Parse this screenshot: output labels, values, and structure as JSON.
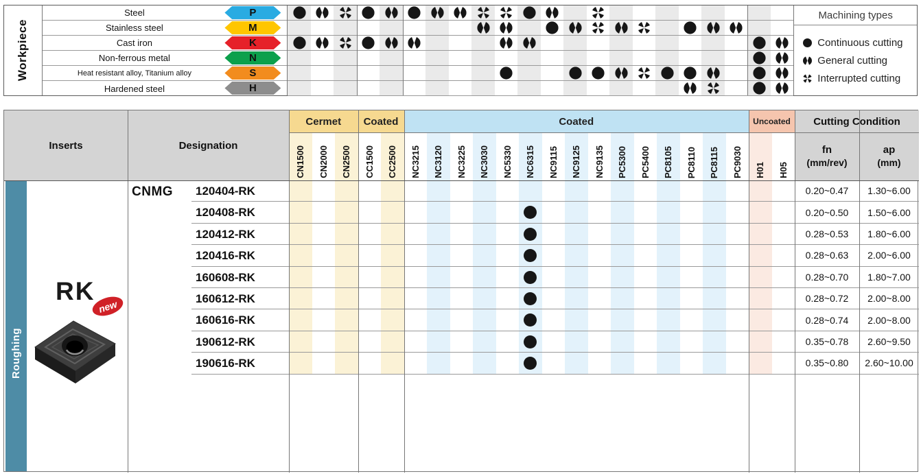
{
  "colors": {
    "symbol_black": "#161616",
    "teal": "#4E8CA6",
    "badge_red": "#D02127",
    "gray_header": "#D4D4D4",
    "top_tint": "#EAEAEA",
    "cermet_header": "#F6D990",
    "cermet_tint": "#FBF2D6",
    "coated_header": "#BFE2F3",
    "coated_tint": "#E3F2FB",
    "uncoated_header": "#F5C5AE",
    "uncoated_tint": "#FBEAE2"
  },
  "workpiece": {
    "label": "Workpiece",
    "rows": [
      {
        "name": "Steel",
        "letter": "P",
        "color": "#29ABE2",
        "symbols": [
          "C",
          "G",
          "I",
          "C",
          "G",
          "C",
          "G",
          "G",
          "I",
          "I",
          "C",
          "G",
          "",
          "I",
          "",
          "",
          "",
          "",
          "",
          "",
          "",
          ""
        ]
      },
      {
        "name": "Stainless steel",
        "letter": "M",
        "color": "#FFC600",
        "symbols": [
          "",
          "",
          "",
          "",
          "",
          "",
          "",
          "",
          "G",
          "G",
          "",
          "C",
          "G",
          "I",
          "G",
          "I",
          "",
          "C",
          "G",
          "G",
          "",
          ""
        ]
      },
      {
        "name": "Cast iron",
        "letter": "K",
        "color": "#E62129",
        "symbols": [
          "C",
          "G",
          "I",
          "C",
          "G",
          "G",
          "",
          "",
          "",
          "G",
          "G",
          "",
          "",
          "",
          "",
          "",
          "",
          "",
          "",
          "",
          "C",
          "G"
        ]
      },
      {
        "name": "Non-ferrous metal",
        "letter": "N",
        "color": "#0CA04C",
        "symbols": [
          "",
          "",
          "",
          "",
          "",
          "",
          "",
          "",
          "",
          "",
          "",
          "",
          "",
          "",
          "",
          "",
          "",
          "",
          "",
          "",
          "C",
          "G"
        ]
      },
      {
        "name": "Heat resistant alloy, Titanium alloy",
        "letter": "S",
        "color": "#F28C1E",
        "symbols": [
          "",
          "",
          "",
          "",
          "",
          "",
          "",
          "",
          "",
          "C",
          "",
          "",
          "C",
          "C",
          "G",
          "I",
          "C",
          "C",
          "G",
          "",
          "C",
          "G"
        ]
      },
      {
        "name": "Hardened steel",
        "letter": "H",
        "color": "#8D8D8D",
        "symbols": [
          "",
          "",
          "",
          "",
          "",
          "",
          "",
          "",
          "",
          "",
          "",
          "",
          "",
          "",
          "",
          "",
          "",
          "G",
          "I",
          "",
          "C",
          "G"
        ]
      }
    ]
  },
  "legend": {
    "title": "Machining types",
    "items": [
      {
        "symbol": "C",
        "label": "Continuous cutting"
      },
      {
        "symbol": "G",
        "label": "General cutting"
      },
      {
        "symbol": "I",
        "label": "Interrupted cutting"
      }
    ]
  },
  "grades": {
    "columns": [
      "CN1500",
      "CN2000",
      "CN2500",
      "CC1500",
      "CC2500",
      "NC3215",
      "NC3120",
      "NC3225",
      "NC3030",
      "NC5330",
      "NC6315",
      "NC9115",
      "NC9125",
      "NC9135",
      "PC5300",
      "PC5400",
      "PC8105",
      "PC8110",
      "PC8115",
      "PC9030",
      "H01",
      "H05"
    ],
    "groups": [
      {
        "label": "Cermet",
        "span": 3,
        "style": "cermet"
      },
      {
        "label": "Coated",
        "span": 2,
        "style": "cermet"
      },
      {
        "label": "Coated",
        "span": 15,
        "style": "coated"
      },
      {
        "label": "Uncoated",
        "span": 2,
        "style": "uncoated"
      }
    ]
  },
  "inserts_table": {
    "inserts_header": "Inserts",
    "designation_header": "Designation",
    "cutting_condition_header": "Cutting Condition",
    "fn_header": "fn",
    "fn_unit": "(mm/rev)",
    "ap_header": "ap",
    "ap_unit": "(mm)",
    "category_label": "Roughing",
    "chipbreaker": "RK",
    "new_badge": "new",
    "designation_prefix": "CNMG",
    "rows": [
      {
        "designation": "120404-RK",
        "grades": [],
        "fn": "0.20~0.47",
        "ap": "1.30~6.00"
      },
      {
        "designation": "120408-RK",
        "grades": [
          "NC6315"
        ],
        "fn": "0.20~0.50",
        "ap": "1.50~6.00"
      },
      {
        "designation": "120412-RK",
        "grades": [
          "NC6315"
        ],
        "fn": "0.28~0.53",
        "ap": "1.80~6.00"
      },
      {
        "designation": "120416-RK",
        "grades": [
          "NC6315"
        ],
        "fn": "0.28~0.63",
        "ap": "2.00~6.00"
      },
      {
        "designation": "160608-RK",
        "grades": [
          "NC6315"
        ],
        "fn": "0.28~0.70",
        "ap": "1.80~7.00"
      },
      {
        "designation": "160612-RK",
        "grades": [
          "NC6315"
        ],
        "fn": "0.28~0.72",
        "ap": "2.00~8.00"
      },
      {
        "designation": "160616-RK",
        "grades": [
          "NC6315"
        ],
        "fn": "0.28~0.74",
        "ap": "2.00~8.00"
      },
      {
        "designation": "190612-RK",
        "grades": [
          "NC6315"
        ],
        "fn": "0.35~0.78",
        "ap": "2.60~9.50"
      },
      {
        "designation": "190616-RK",
        "grades": [
          "NC6315"
        ],
        "fn": "0.35~0.80",
        "ap": "2.60~10.00"
      }
    ]
  }
}
